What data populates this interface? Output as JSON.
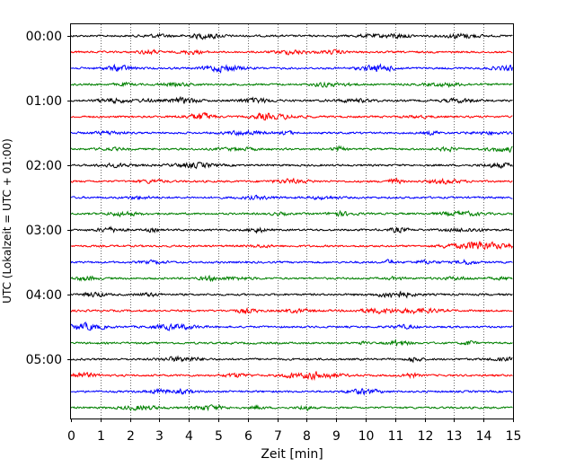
{
  "chart_data": {
    "type": "line",
    "title": "",
    "xlabel": "Zeit  [min]",
    "ylabel": "UTC (Lokalzeit = UTC + 01:00)",
    "xlim": [
      0,
      15
    ],
    "xticks": [
      "0",
      "1",
      "2",
      "3",
      "4",
      "5",
      "6",
      "7",
      "8",
      "9",
      "10",
      "11",
      "12",
      "13",
      "14",
      "15"
    ],
    "ytick_labels": [
      "00:00",
      "01:00",
      "02:00",
      "03:00",
      "04:00",
      "05:00"
    ],
    "row_interval_minutes": 15,
    "row_count": 24,
    "row_colors": [
      "#000000",
      "#ff0000",
      "#0000ff",
      "#008000"
    ],
    "grid": "vertical dotted",
    "legend": "none"
  }
}
